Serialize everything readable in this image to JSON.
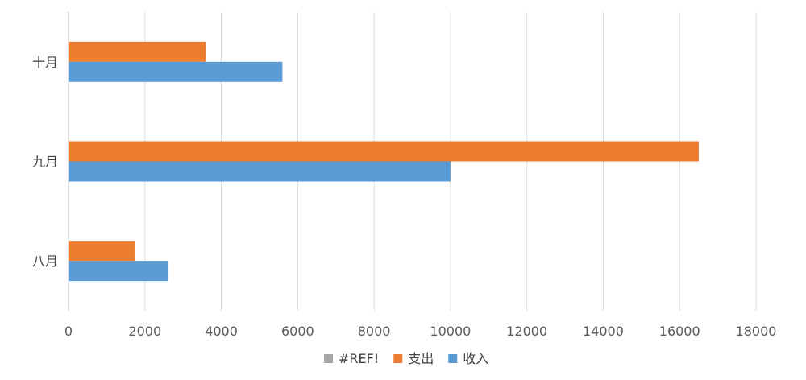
{
  "chart_data": {
    "type": "bar",
    "orientation": "horizontal",
    "title": "",
    "xlabel": "",
    "ylabel": "",
    "categories": [
      "八月",
      "九月",
      "十月"
    ],
    "series": [
      {
        "name": "#REF!",
        "color": "#A5A5A5",
        "values": [
          0,
          0,
          0
        ]
      },
      {
        "name": "支出",
        "color": "#ED7D31",
        "values": [
          1750,
          16500,
          3600
        ]
      },
      {
        "name": "收入",
        "color": "#5B9BD5",
        "values": [
          2600,
          10000,
          5600
        ]
      }
    ],
    "xlim": [
      0,
      18000
    ],
    "x_ticks": [
      0,
      2000,
      4000,
      6000,
      8000,
      10000,
      12000,
      14000,
      16000,
      18000
    ],
    "grid": true,
    "legend_position": "bottom"
  }
}
